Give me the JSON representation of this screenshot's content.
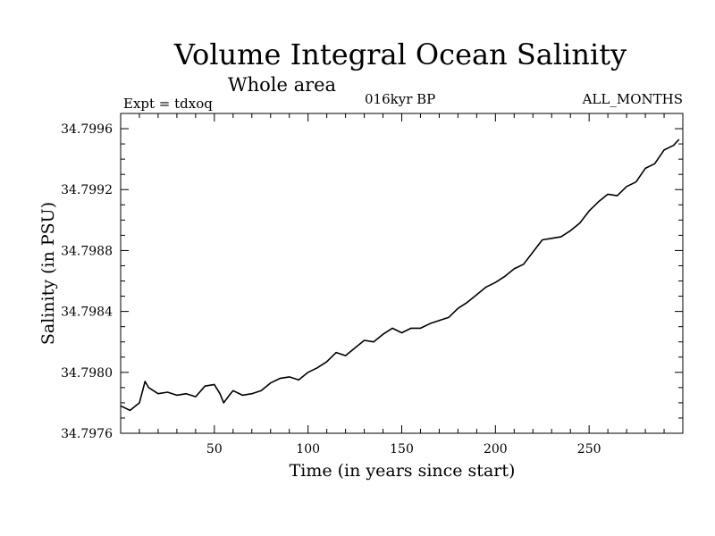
{
  "header": {
    "title": "Volume Integral Ocean Salinity",
    "subtitle": "Whole area",
    "experiment": "Expt = tdxoq",
    "period": "016kyr BP",
    "months": "ALL_MONTHS"
  },
  "chart_data": {
    "type": "line",
    "title": "Volume Integral Ocean Salinity",
    "subtitle": "Whole area",
    "xlabel": "Time (in years since start)",
    "ylabel": "Salinity (in PSU)",
    "xlim": [
      0,
      300
    ],
    "ylim": [
      34.7976,
      34.7997
    ],
    "xticks": [
      50,
      100,
      150,
      200,
      250
    ],
    "yticks": [
      34.7976,
      34.798,
      34.7984,
      34.7988,
      34.7992,
      34.7996
    ],
    "ytick_labels": [
      "34.7976",
      "34.7980",
      "34.7984",
      "34.7988",
      "34.7992",
      "34.7996"
    ],
    "grid": false,
    "series": [
      {
        "x": [
          0,
          5,
          10,
          13,
          15,
          20,
          25,
          30,
          35,
          40,
          45,
          50,
          53,
          55,
          58,
          60,
          65,
          70,
          75,
          80,
          85,
          90,
          95,
          100,
          105,
          110,
          115,
          120,
          125,
          130,
          135,
          140,
          145,
          150,
          155,
          160,
          165,
          170,
          175,
          180,
          185,
          190,
          195,
          200,
          205,
          210,
          215,
          220,
          225,
          230,
          235,
          240,
          245,
          250,
          255,
          260,
          265,
          270,
          275,
          280,
          285,
          290,
          295,
          298
        ],
        "y": [
          34.79778,
          34.79775,
          34.7978,
          34.79794,
          34.7979,
          34.79786,
          34.79787,
          34.79785,
          34.79786,
          34.79784,
          34.79791,
          34.79792,
          34.79786,
          34.7978,
          34.79785,
          34.79788,
          34.79785,
          34.79786,
          34.79788,
          34.79793,
          34.79796,
          34.79797,
          34.79795,
          34.798,
          34.79803,
          34.79807,
          34.79813,
          34.79811,
          34.79816,
          34.79821,
          34.7982,
          34.79825,
          34.79829,
          34.79826,
          34.79829,
          34.79829,
          34.79832,
          34.79834,
          34.79836,
          34.79842,
          34.79846,
          34.79851,
          34.79856,
          34.79859,
          34.79863,
          34.79868,
          34.79871,
          34.79879,
          34.79887,
          34.79888,
          34.79889,
          34.79893,
          34.79898,
          34.79906,
          34.79912,
          34.79917,
          34.79916,
          34.79922,
          34.79925,
          34.79934,
          34.79937,
          34.79946,
          34.79949,
          34.79953
        ]
      }
    ]
  }
}
